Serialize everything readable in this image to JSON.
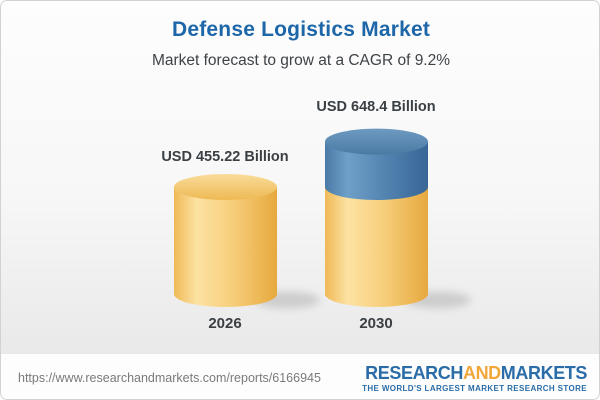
{
  "header": {
    "title": "Defense Logistics Market",
    "subtitle": "Market forecast to grow at a CAGR of 9.2%"
  },
  "chart_data": {
    "type": "bar",
    "style": "3d-cylinder",
    "title": "Defense Logistics Market",
    "subtitle": "Market forecast to grow at a CAGR of 9.2%",
    "categories": [
      "2026",
      "2030"
    ],
    "values": [
      455.22,
      648.4
    ],
    "value_labels": [
      "USD 455.22 Billion",
      "USD 648.4 Billion"
    ],
    "unit": "USD Billion",
    "cagr": "9.2%",
    "grid": false,
    "legend": false,
    "colors": {
      "bar_base": "#F6CE7C",
      "growth_segment": "#4C7FAD"
    }
  },
  "footer": {
    "url": "https://www.researchandmarkets.com/reports/6166945",
    "logo": {
      "part1": "RESEARCH",
      "part2": "AND",
      "part3": "MARKETS",
      "tagline": "THE WORLD'S LARGEST MARKET RESEARCH STORE"
    },
    "colors": {
      "blue": "#2A6CA8",
      "orange": "#F2A73B"
    }
  }
}
